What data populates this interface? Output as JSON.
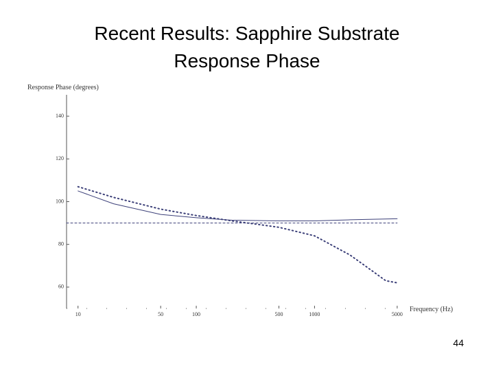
{
  "title_lines": [
    "Recent Results: Sapphire Substrate",
    "Response Phase"
  ],
  "page_number": "44",
  "chart_data": {
    "type": "line",
    "y_label": "Response Phase (degrees)",
    "x_label": "Frequency (Hz)",
    "log_x": true,
    "xlim": [
      8,
      5800
    ],
    "xticks": [
      10,
      50,
      100,
      500,
      1000,
      5000
    ],
    "ylim": [
      50,
      150
    ],
    "yticks": [
      60,
      80,
      100,
      120,
      140
    ],
    "series": [
      {
        "color": "#3b3f78",
        "style": "solid",
        "x": [
          10,
          20,
          50,
          100,
          200,
          500,
          1000,
          2000,
          5000
        ],
        "values": [
          105,
          99,
          94,
          92.5,
          91.3,
          91,
          91,
          91.5,
          92
        ]
      },
      {
        "color": "#3b3f78",
        "style": "dotted",
        "x": [
          10,
          20,
          50,
          100,
          200,
          500,
          1000,
          2000,
          3000,
          4000,
          5000
        ],
        "values": [
          107,
          102,
          96.5,
          93.5,
          91,
          88,
          84,
          75,
          68,
          63,
          62
        ]
      },
      {
        "color": "#3b3f78",
        "style": "dashed",
        "x": [
          8,
          5000
        ],
        "values": [
          90,
          90
        ]
      }
    ]
  }
}
